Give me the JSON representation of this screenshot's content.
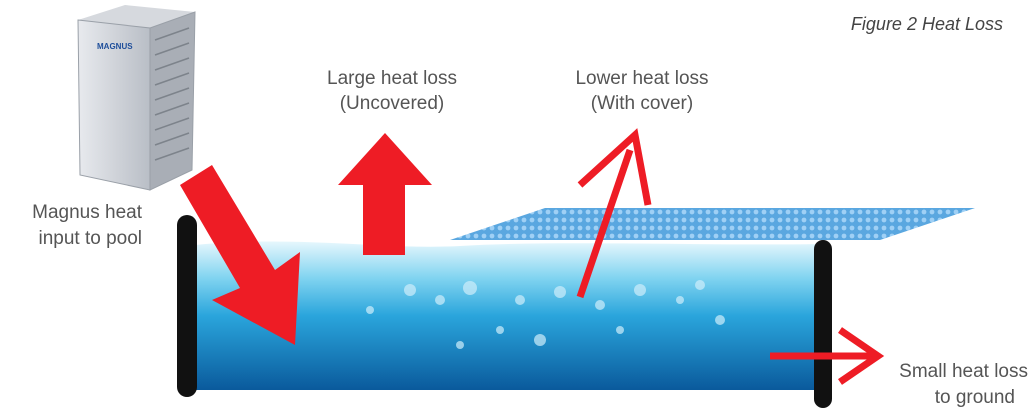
{
  "caption": "Figure 2 Heat Loss",
  "unit_brand": "MAGNUS",
  "labels": {
    "uncovered": [
      "Large heat loss",
      "(Uncovered)"
    ],
    "covered": [
      "Lower heat loss",
      "(With cover)"
    ],
    "input": [
      "Magnus heat",
      "input to pool"
    ],
    "ground": [
      "Small heat loss",
      "to ground"
    ]
  }
}
